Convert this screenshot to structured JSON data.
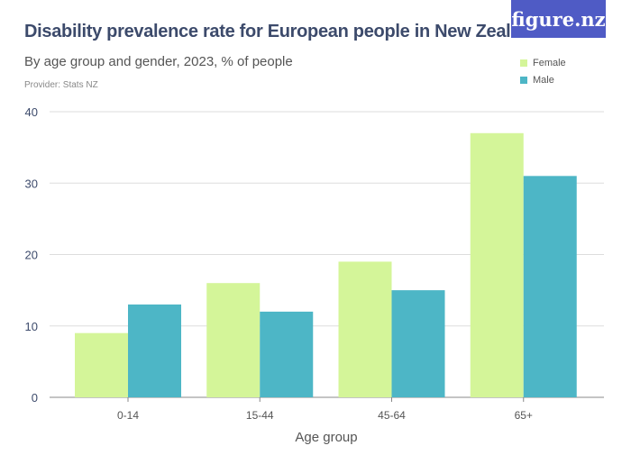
{
  "title": "Disability prevalence rate for European people in New Zealand",
  "subtitle": "By age group and gender, 2023, % of people",
  "provider": "Provider: Stats NZ",
  "logo": "figure.nz",
  "colors": {
    "Female": "#d4f599",
    "Male": "#4db6c6",
    "logo_bg": "#4f5bc5"
  },
  "chart_data": {
    "type": "bar",
    "title": "Disability prevalence rate for European people in New Zealand",
    "subtitle": "By age group and gender, 2023, % of people",
    "xlabel": "Age group",
    "ylabel": "",
    "categories": [
      "0-14",
      "15-44",
      "45-64",
      "65+"
    ],
    "series": [
      {
        "name": "Female",
        "values": [
          9,
          16,
          19,
          37
        ]
      },
      {
        "name": "Male",
        "values": [
          13,
          12,
          15,
          31
        ]
      }
    ],
    "ylim": [
      0,
      40
    ],
    "yticks": [
      0,
      10,
      20,
      30,
      40
    ],
    "grid": true,
    "legend": "top-right"
  }
}
